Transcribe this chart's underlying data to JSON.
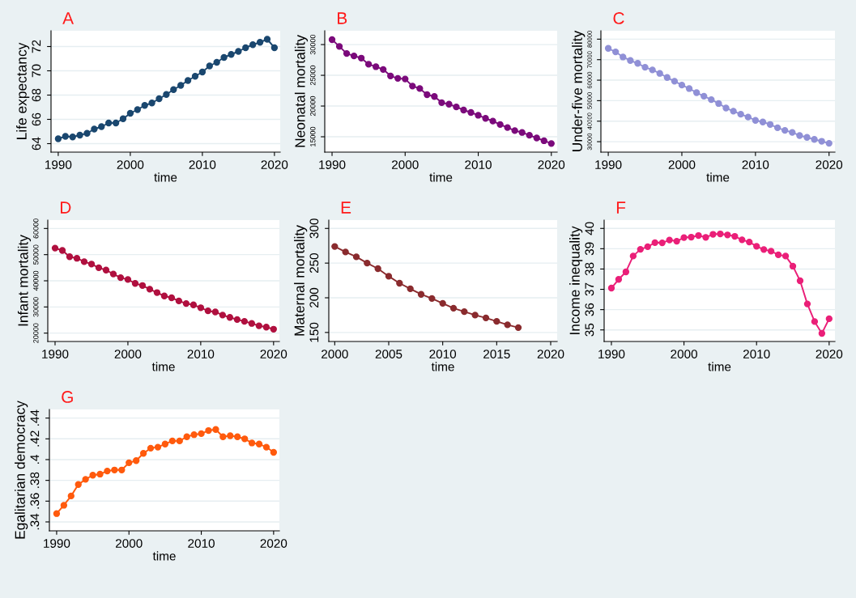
{
  "chart_data": [
    {
      "type": "line",
      "title": "A",
      "xlabel": "time",
      "ylabel": "Life expectancy",
      "color": "#1a476f",
      "marker": "circle",
      "grid": "y",
      "x": [
        1990,
        1991,
        1992,
        1993,
        1994,
        1995,
        1996,
        1997,
        1998,
        1999,
        2000,
        2001,
        2002,
        2003,
        2004,
        2005,
        2006,
        2007,
        2008,
        2009,
        2010,
        2011,
        2012,
        2013,
        2014,
        2015,
        2016,
        2017,
        2018,
        2019,
        2020
      ],
      "values": [
        64.4,
        64.6,
        64.55,
        64.7,
        64.85,
        65.2,
        65.4,
        65.7,
        65.7,
        66.05,
        66.5,
        66.8,
        67.15,
        67.35,
        67.7,
        68.05,
        68.45,
        68.8,
        69.2,
        69.55,
        69.9,
        70.4,
        70.7,
        71.1,
        71.35,
        71.6,
        71.9,
        72.15,
        72.35,
        72.6,
        71.9
      ],
      "xlim": [
        1989,
        2020.8
      ],
      "xticks": [
        1990,
        2000,
        2010,
        2020
      ],
      "ylim": [
        63.3,
        73.3
      ],
      "yticks": [
        64,
        66,
        68,
        70,
        72
      ]
    },
    {
      "type": "line",
      "title": "B",
      "xlabel": "time",
      "ylabel": "Neonatal mortality",
      "color": "#7b0a7b",
      "marker": "circle",
      "grid": "y",
      "x": [
        1990,
        1991,
        1992,
        1993,
        1994,
        1995,
        1996,
        1997,
        1998,
        1999,
        2000,
        2001,
        2002,
        2003,
        2004,
        2005,
        2006,
        2007,
        2008,
        2009,
        2010,
        2011,
        2012,
        2013,
        2014,
        2015,
        2016,
        2017,
        2018,
        2019,
        2020
      ],
      "values": [
        30800,
        29700,
        28550,
        28150,
        27800,
        26800,
        26400,
        25950,
        24900,
        24500,
        24400,
        23250,
        22850,
        21850,
        21550,
        20550,
        20300,
        19850,
        19350,
        18950,
        18500,
        18000,
        17550,
        17000,
        16500,
        16000,
        15700,
        15250,
        14800,
        14350,
        13900
      ],
      "xlim": [
        1989,
        2020.8
      ],
      "xticks": [
        1990,
        2000,
        2010,
        2020
      ],
      "ylim": [
        12500,
        32250
      ],
      "yticks": [
        15000,
        20000,
        25000,
        30000
      ]
    },
    {
      "type": "line",
      "title": "C",
      "xlabel": "time",
      "ylabel": "Under-five mortality",
      "color": "#9090d6",
      "marker": "circle",
      "grid": "y",
      "x": [
        1990,
        1991,
        1992,
        1993,
        1994,
        1995,
        1996,
        1997,
        1998,
        1999,
        2000,
        2001,
        2002,
        2003,
        2004,
        2005,
        2006,
        2007,
        2008,
        2009,
        2010,
        2011,
        2012,
        2013,
        2014,
        2015,
        2016,
        2017,
        2018,
        2019,
        2020
      ],
      "values": [
        75500,
        73800,
        71300,
        69600,
        68200,
        66300,
        65000,
        63300,
        61300,
        59500,
        57600,
        55900,
        53900,
        52200,
        50500,
        48600,
        46400,
        44900,
        43400,
        42000,
        40400,
        39600,
        38400,
        36800,
        35500,
        34500,
        33000,
        32100,
        31100,
        30200,
        29200
      ],
      "xlim": [
        1989,
        2020.8
      ],
      "xticks": [
        1990,
        2000,
        2010,
        2020
      ],
      "ylim": [
        24900,
        84100
      ],
      "yticks": [
        30000,
        40000,
        50000,
        60000,
        70000,
        80000
      ]
    },
    {
      "type": "line",
      "title": "D",
      "xlabel": "time",
      "ylabel": "Infant mortality",
      "color": "#b0103f",
      "marker": "circle",
      "grid": "y",
      "x": [
        1990,
        1991,
        1992,
        1993,
        1994,
        1995,
        1996,
        1997,
        1998,
        1999,
        2000,
        2001,
        2002,
        2003,
        2004,
        2005,
        2006,
        2007,
        2008,
        2009,
        2010,
        2011,
        2012,
        2013,
        2014,
        2015,
        2016,
        2017,
        2018,
        2019,
        2020
      ],
      "values": [
        52500,
        51600,
        49200,
        48600,
        47300,
        46400,
        45000,
        44100,
        42600,
        41200,
        40500,
        39000,
        38200,
        36800,
        35500,
        34200,
        33500,
        32300,
        31300,
        30800,
        29700,
        28500,
        28100,
        26900,
        26000,
        25200,
        24500,
        23700,
        22800,
        22300,
        21500
      ],
      "xlim": [
        1989,
        2020.8
      ],
      "xticks": [
        1990,
        2000,
        2010,
        2020
      ],
      "ylim": [
        16800,
        63200
      ],
      "yticks": [
        20000,
        30000,
        40000,
        50000,
        60000
      ]
    },
    {
      "type": "line",
      "title": "E",
      "xlabel": "time",
      "ylabel": "Maternal mortality",
      "color": "#8a2b2e",
      "marker": "circle",
      "grid": "y",
      "x": [
        2000,
        2001,
        2002,
        2003,
        2004,
        2005,
        2006,
        2007,
        2008,
        2009,
        2010,
        2011,
        2012,
        2013,
        2014,
        2015,
        2016,
        2017
      ],
      "values": [
        274,
        266,
        259,
        250,
        242,
        231,
        221,
        213,
        205,
        199,
        192,
        185,
        180,
        175,
        171,
        166,
        161,
        157
      ],
      "xlim": [
        1999.45,
        2020.6
      ],
      "xticks": [
        2000,
        2005,
        2010,
        2015,
        2020
      ],
      "ylim": [
        137,
        312
      ],
      "yticks": [
        150,
        200,
        250,
        300
      ]
    },
    {
      "type": "line",
      "title": "F",
      "xlabel": "time",
      "ylabel": "Income inequality",
      "color": "#ea1f78",
      "marker": "circle",
      "grid": "y",
      "x": [
        1990,
        1991,
        1992,
        1993,
        1994,
        1995,
        1996,
        1997,
        1998,
        1999,
        2000,
        2001,
        2002,
        2003,
        2004,
        2005,
        2006,
        2007,
        2008,
        2009,
        2010,
        2011,
        2012,
        2013,
        2014,
        2015,
        2016,
        2017,
        2018,
        2019,
        2020
      ],
      "values": [
        37.06,
        37.49,
        37.86,
        38.64,
        38.97,
        39.1,
        39.3,
        39.29,
        39.43,
        39.37,
        39.55,
        39.57,
        39.65,
        39.56,
        39.71,
        39.73,
        39.68,
        39.61,
        39.44,
        39.33,
        39.12,
        38.96,
        38.88,
        38.7,
        38.64,
        38.14,
        37.42,
        36.28,
        35.41,
        34.83,
        35.55
      ],
      "xlim": [
        1989,
        2020.8
      ],
      "xticks": [
        1990,
        2000,
        2010,
        2020
      ],
      "ylim": [
        34.43,
        40.41
      ],
      "yticks": [
        35,
        36,
        37,
        38,
        39,
        40
      ]
    },
    {
      "type": "line",
      "title": "G",
      "xlabel": "time",
      "ylabel": "Egalitarian democracy",
      "color": "#ff5a0d",
      "marker": "circle",
      "grid": "y",
      "x": [
        1990,
        1991,
        1992,
        1993,
        1994,
        1995,
        1996,
        1997,
        1998,
        1999,
        2000,
        2001,
        2002,
        2003,
        2004,
        2005,
        2006,
        2007,
        2008,
        2009,
        2010,
        2011,
        2012,
        2013,
        2014,
        2015,
        2016,
        2017,
        2018,
        2019,
        2020
      ],
      "values": [
        0.348,
        0.356,
        0.365,
        0.376,
        0.381,
        0.385,
        0.386,
        0.389,
        0.39,
        0.39,
        0.397,
        0.399,
        0.406,
        0.411,
        0.412,
        0.415,
        0.418,
        0.418,
        0.422,
        0.424,
        0.425,
        0.428,
        0.429,
        0.422,
        0.423,
        0.422,
        0.42,
        0.416,
        0.415,
        0.412,
        0.407
      ],
      "xlim": [
        1989,
        2020.8
      ],
      "xticks": [
        1990,
        2000,
        2010,
        2020
      ],
      "ylim": [
        0.3314,
        0.4483
      ],
      "yticks": [
        {
          "value": 0.34,
          "label": ".34"
        },
        {
          "value": 0.36,
          "label": ".36"
        },
        {
          "value": 0.38,
          "label": ".38"
        },
        {
          "value": 0.4,
          "label": ".4"
        },
        {
          "value": 0.42,
          "label": ".42"
        },
        {
          "value": 0.44,
          "label": ".44"
        }
      ]
    }
  ]
}
